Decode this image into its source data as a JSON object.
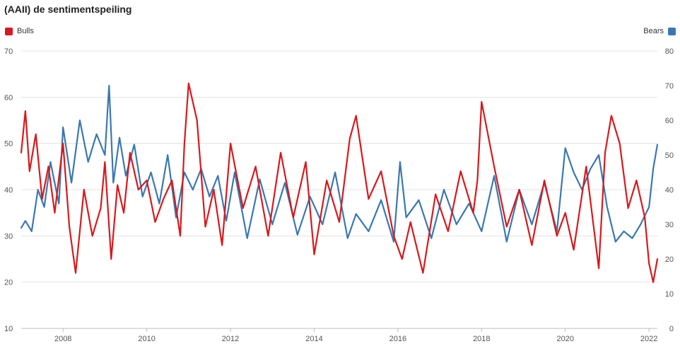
{
  "chart_data": {
    "type": "line",
    "title": "(AAII) de sentimentspeiling",
    "x_ticks": [
      "2008",
      "2010",
      "2012",
      "2014",
      "2016",
      "2018",
      "2020",
      "2022"
    ],
    "xlim": [
      2007.0,
      2022.2
    ],
    "y_left": {
      "ticks": [
        "10",
        "20",
        "30",
        "40",
        "50",
        "60",
        "70"
      ],
      "lim": [
        10,
        70
      ]
    },
    "y_right": {
      "ticks": [
        "0",
        "10",
        "20",
        "30",
        "40",
        "50",
        "60",
        "70",
        "80"
      ],
      "lim": [
        0,
        80
      ]
    },
    "grid": true,
    "legend_placement": "top-left and top-right",
    "series": [
      {
        "name": "Bulls",
        "axis": "left",
        "color": "#d7191c",
        "x": [
          2007.0,
          2007.1,
          2007.2,
          2007.35,
          2007.5,
          2007.65,
          2007.8,
          2008.0,
          2008.15,
          2008.3,
          2008.5,
          2008.7,
          2008.9,
          2009.0,
          2009.15,
          2009.3,
          2009.45,
          2009.6,
          2009.8,
          2010.0,
          2010.2,
          2010.4,
          2010.6,
          2010.8,
          2010.9,
          2011.0,
          2011.2,
          2011.4,
          2011.6,
          2011.8,
          2012.0,
          2012.3,
          2012.6,
          2012.9,
          2013.2,
          2013.5,
          2013.8,
          2014.0,
          2014.3,
          2014.6,
          2014.85,
          2015.0,
          2015.3,
          2015.6,
          2015.9,
          2016.1,
          2016.3,
          2016.6,
          2016.9,
          2017.2,
          2017.5,
          2017.8,
          2017.9,
          2018.0,
          2018.3,
          2018.6,
          2018.9,
          2019.2,
          2019.5,
          2019.8,
          2020.0,
          2020.2,
          2020.5,
          2020.8,
          2020.95,
          2021.1,
          2021.3,
          2021.5,
          2021.7,
          2021.9,
          2022.0,
          2022.1,
          2022.2
        ],
        "values": [
          48,
          57,
          44,
          52,
          38,
          45,
          35,
          50,
          32,
          22,
          40,
          30,
          36,
          46,
          25,
          41,
          35,
          48,
          40,
          42,
          33,
          38,
          42,
          30,
          50,
          63,
          55,
          32,
          40,
          28,
          50,
          36,
          45,
          30,
          48,
          34,
          46,
          26,
          42,
          33,
          51,
          56,
          38,
          44,
          30,
          25,
          33,
          22,
          39,
          31,
          44,
          35,
          42,
          59,
          45,
          32,
          40,
          28,
          42,
          30,
          35,
          27,
          45,
          23,
          48,
          56,
          50,
          36,
          42,
          34,
          24,
          20,
          25
        ]
      },
      {
        "name": "Bears",
        "axis": "right",
        "color": "#3a78b0",
        "x": [
          2007.0,
          2007.1,
          2007.25,
          2007.4,
          2007.55,
          2007.7,
          2007.9,
          2008.0,
          2008.2,
          2008.4,
          2008.6,
          2008.8,
          2009.0,
          2009.1,
          2009.2,
          2009.35,
          2009.5,
          2009.7,
          2009.9,
          2010.1,
          2010.3,
          2010.5,
          2010.7,
          2010.9,
          2011.1,
          2011.3,
          2011.5,
          2011.7,
          2011.9,
          2012.1,
          2012.4,
          2012.7,
          2013.0,
          2013.3,
          2013.6,
          2013.9,
          2014.2,
          2014.5,
          2014.8,
          2015.0,
          2015.3,
          2015.6,
          2015.9,
          2016.05,
          2016.2,
          2016.5,
          2016.8,
          2017.1,
          2017.4,
          2017.7,
          2018.0,
          2018.3,
          2018.6,
          2018.9,
          2019.2,
          2019.5,
          2019.8,
          2020.0,
          2020.2,
          2020.4,
          2020.6,
          2020.8,
          2021.0,
          2021.2,
          2021.4,
          2021.6,
          2021.8,
          2022.0,
          2022.1,
          2022.2
        ],
        "values": [
          29,
          31,
          28,
          40,
          35,
          48,
          36,
          58,
          42,
          60,
          48,
          56,
          50,
          70,
          42,
          55,
          44,
          53,
          38,
          45,
          36,
          50,
          32,
          45,
          40,
          46,
          38,
          44,
          31,
          45,
          26,
          43,
          30,
          42,
          27,
          38,
          30,
          45,
          26,
          33,
          28,
          37,
          25,
          48,
          32,
          37,
          26,
          40,
          30,
          36,
          28,
          44,
          25,
          40,
          30,
          42,
          28,
          52,
          45,
          40,
          46,
          50,
          35,
          25,
          28,
          26,
          30,
          35,
          46,
          53
        ]
      }
    ]
  }
}
